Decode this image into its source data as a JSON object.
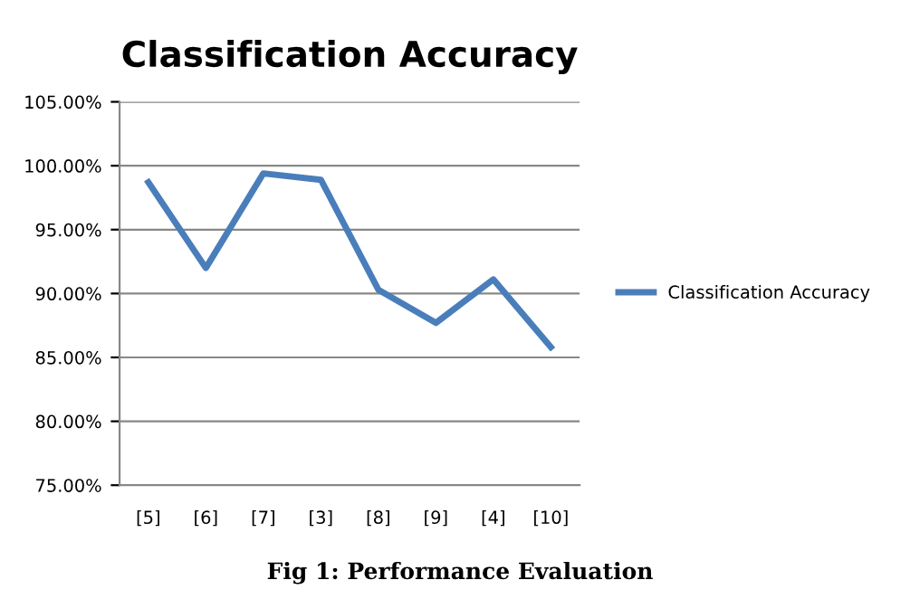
{
  "chart_data": {
    "type": "line",
    "title": "Classification Accuracy",
    "categories": [
      "[5]",
      "[6]",
      "[7]",
      "[3]",
      "[8]",
      "[9]",
      "[4]",
      "[10]"
    ],
    "series": [
      {
        "name": "Classification Accuracy",
        "color": "#4a7ebb",
        "values": [
          98.7,
          92.0,
          99.4,
          98.9,
          90.3,
          87.7,
          91.1,
          85.8
        ]
      }
    ],
    "ylim": [
      75,
      105
    ],
    "yticks": [
      {
        "value": 75,
        "label": "75.00%"
      },
      {
        "value": 80,
        "label": "80.00%"
      },
      {
        "value": 85,
        "label": "85.00%"
      },
      {
        "value": 90,
        "label": "90.00%"
      },
      {
        "value": 95,
        "label": "95.00%"
      },
      {
        "value": 100,
        "label": "100.00%"
      },
      {
        "value": 105,
        "label": "105.00%"
      }
    ],
    "grid": "y",
    "legend": "right",
    "marker": "none",
    "line_style": "solid",
    "annotations": [
      "Fig 1: Performance Evaluation"
    ]
  }
}
